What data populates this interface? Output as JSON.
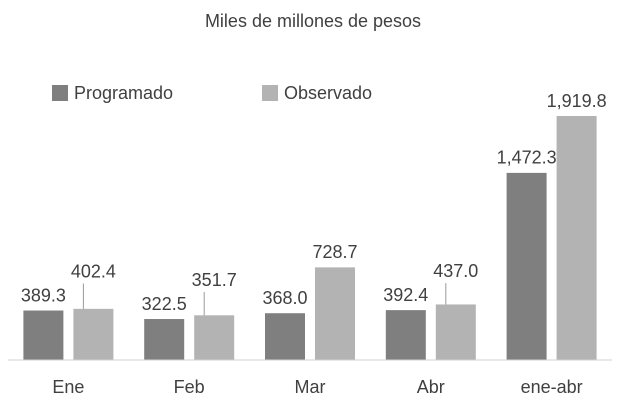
{
  "chart_data": {
    "type": "bar",
    "title": "Miles de millones de pesos",
    "categories": [
      "Ene",
      "Feb",
      "Mar",
      "Abr",
      "ene-abr"
    ],
    "series": [
      {
        "name": "Programado",
        "color": "#7f7f7f",
        "values": [
          389.3,
          322.5,
          368.0,
          392.4,
          1472.3
        ],
        "value_labels": [
          "389.3",
          "322.5",
          "368.0",
          "392.4",
          "1,472.3"
        ]
      },
      {
        "name": "Observado",
        "color": "#b3b3b3",
        "values": [
          402.4,
          351.7,
          728.7,
          437.0,
          1919.8
        ],
        "value_labels": [
          "402.4",
          "351.7",
          "728.7",
          "437.0",
          "1,919.8"
        ]
      }
    ],
    "legend": "top-left"
  }
}
